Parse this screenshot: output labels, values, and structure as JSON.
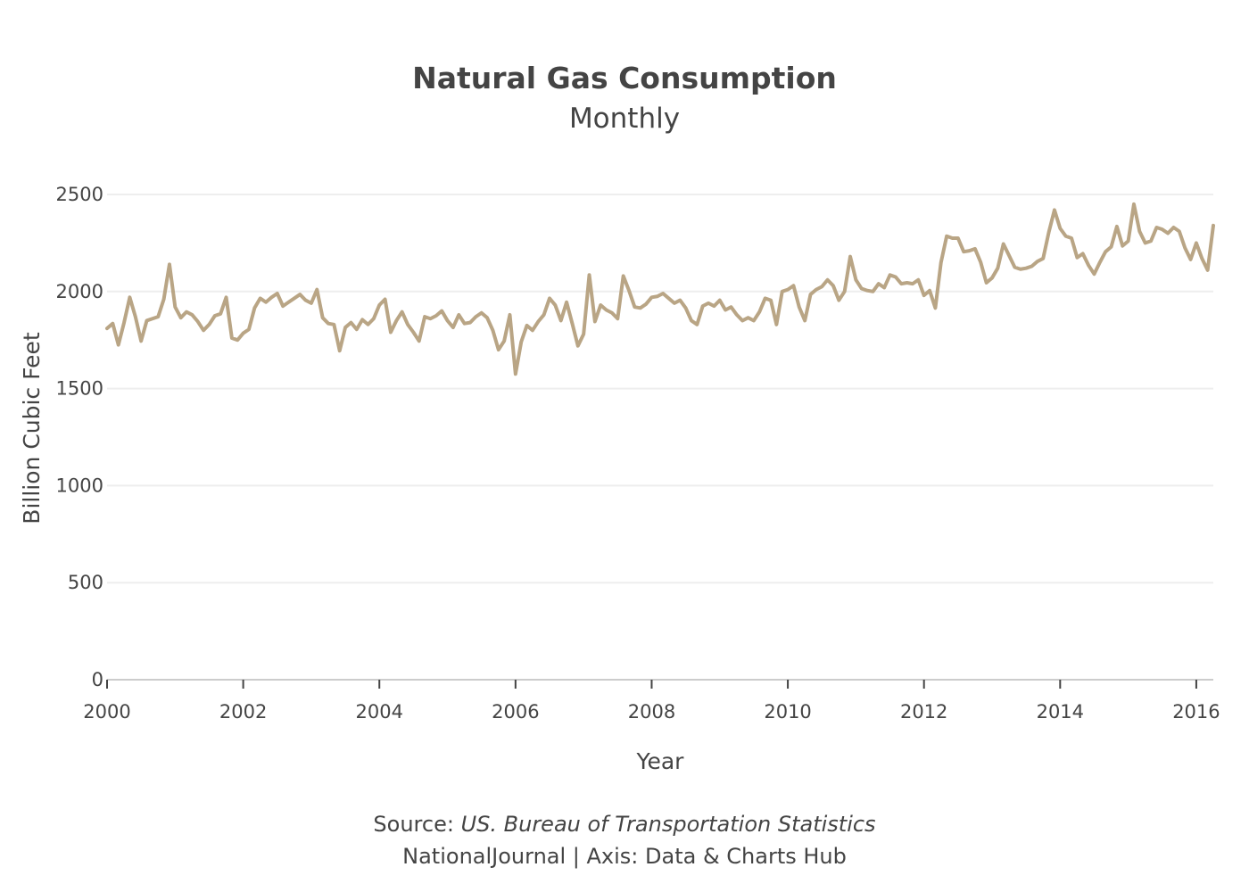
{
  "chart_data": {
    "type": "line",
    "title": "Natural Gas Consumption",
    "subtitle": "Monthly",
    "xlabel": "Year",
    "ylabel": "Billion Cubic Feet",
    "x_ticks": [
      "2000",
      "2002",
      "2004",
      "2006",
      "2008",
      "2010",
      "2012",
      "2014",
      "2016"
    ],
    "y_ticks": [
      "0",
      "500",
      "1000",
      "1500",
      "2000",
      "2500"
    ],
    "ylim": [
      0,
      2500
    ],
    "xlim": [
      2000,
      2016.25
    ],
    "grid": true,
    "x_start": "2000-01",
    "series": [
      {
        "color": "#b9a585",
        "values": [
          1810,
          1835,
          1725,
          1840,
          1970,
          1870,
          1745,
          1850,
          1860,
          1870,
          1960,
          2140,
          1920,
          1865,
          1895,
          1880,
          1845,
          1800,
          1830,
          1875,
          1885,
          1970,
          1760,
          1750,
          1785,
          1805,
          1915,
          1965,
          1945,
          1970,
          1990,
          1925,
          1945,
          1965,
          1985,
          1955,
          1940,
          2010,
          1865,
          1835,
          1830,
          1695,
          1815,
          1840,
          1805,
          1855,
          1830,
          1860,
          1930,
          1960,
          1790,
          1850,
          1895,
          1830,
          1790,
          1745,
          1870,
          1860,
          1875,
          1900,
          1850,
          1815,
          1880,
          1835,
          1840,
          1870,
          1890,
          1865,
          1800,
          1700,
          1745,
          1880,
          1575,
          1740,
          1825,
          1800,
          1845,
          1880,
          1965,
          1930,
          1850,
          1945,
          1835,
          1720,
          1780,
          2085,
          1845,
          1930,
          1905,
          1890,
          1860,
          2080,
          2005,
          1920,
          1915,
          1935,
          1970,
          1975,
          1990,
          1965,
          1940,
          1955,
          1915,
          1850,
          1830,
          1925,
          1940,
          1925,
          1955,
          1905,
          1920,
          1880,
          1850,
          1865,
          1850,
          1895,
          1965,
          1955,
          1830,
          2000,
          2010,
          2030,
          1920,
          1850,
          1985,
          2010,
          2025,
          2060,
          2030,
          1955,
          2000,
          2180,
          2060,
          2015,
          2005,
          2000,
          2040,
          2020,
          2085,
          2075,
          2040,
          2045,
          2040,
          2060,
          1980,
          2005,
          1915,
          2150,
          2285,
          2275,
          2275,
          2205,
          2210,
          2220,
          2150,
          2045,
          2070,
          2120,
          2245,
          2185,
          2125,
          2115,
          2120,
          2130,
          2155,
          2170,
          2305,
          2420,
          2325,
          2285,
          2275,
          2175,
          2195,
          2135,
          2090,
          2150,
          2205,
          2230,
          2335,
          2235,
          2260,
          2450,
          2310,
          2250,
          2260,
          2330,
          2320,
          2300,
          2330,
          2310,
          2225,
          2165,
          2250,
          2170,
          2110,
          2340
        ]
      }
    ]
  },
  "footer": {
    "source_prefix": "Source: ",
    "source_name": "US. Bureau of Transportation Statistics",
    "credit": "NationalJournal | Axis: Data & Charts Hub"
  }
}
